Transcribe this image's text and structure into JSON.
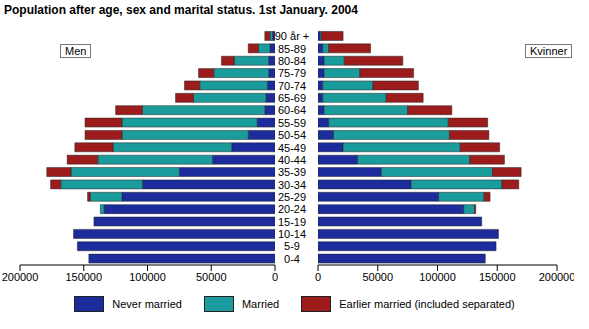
{
  "title": "Population after age, sex and marital status. 1st January. 2004",
  "chart_data": [
    {
      "type": "bar",
      "orientation": "horizontal",
      "stacked": true,
      "annotation": "Men",
      "legend": "bottom",
      "categories": [
        "0-4",
        "5-9",
        "10-14",
        "15-19",
        "20-24",
        "25-29",
        "30-34",
        "35-39",
        "40-44",
        "45-49",
        "50-54",
        "55-59",
        "60-64",
        "65-69",
        "70-74",
        "75-79",
        "80-84",
        "85-89",
        "90 år +"
      ],
      "xlim": [
        200000,
        0
      ],
      "xticks": [
        200000,
        150000,
        100000,
        50000,
        0
      ],
      "series": [
        {
          "name": "Never married",
          "color": "#1c2c9c",
          "values": [
            146000,
            155000,
            158000,
            142000,
            134000,
            120000,
            104000,
            75000,
            49000,
            34000,
            21000,
            14000,
            8000,
            7000,
            6000,
            5000,
            5000,
            4000,
            2000
          ]
        },
        {
          "name": "Married",
          "color": "#1b9c9c",
          "values": [
            0,
            0,
            0,
            0,
            3000,
            25000,
            64000,
            85000,
            90000,
            93000,
            99000,
            106000,
            96000,
            57000,
            53000,
            43000,
            27000,
            9000,
            2000
          ]
        },
        {
          "name": "Earlier married (included separated)",
          "color": "#9c1c1c",
          "values": [
            0,
            0,
            0,
            0,
            0,
            2000,
            8000,
            19000,
            24000,
            30000,
            29000,
            29000,
            21000,
            14000,
            12000,
            12000,
            10000,
            8000,
            4000
          ]
        }
      ]
    },
    {
      "type": "bar",
      "orientation": "horizontal",
      "stacked": true,
      "annotation": "Kvinner",
      "categories": [
        "0-4",
        "5-9",
        "10-14",
        "15-19",
        "20-24",
        "25-29",
        "30-34",
        "35-39",
        "40-44",
        "45-49",
        "50-54",
        "55-59",
        "60-64",
        "65-69",
        "70-74",
        "75-79",
        "80-84",
        "85-89",
        "90 år +"
      ],
      "xlim": [
        0,
        200000
      ],
      "xticks": [
        0,
        50000,
        100000,
        150000,
        200000
      ],
      "series": [
        {
          "name": "Never married",
          "color": "#1c2c9c",
          "values": [
            140000,
            149000,
            151000,
            137000,
            122000,
            101000,
            78000,
            53000,
            33000,
            21000,
            13000,
            9000,
            5000,
            4000,
            4000,
            5000,
            5000,
            4000,
            2000
          ]
        },
        {
          "name": "Married",
          "color": "#1b9c9c",
          "values": [
            0,
            0,
            0,
            0,
            9000,
            38000,
            76000,
            93000,
            94000,
            98000,
            97000,
            100000,
            70000,
            53000,
            42000,
            30000,
            17000,
            5000,
            1000
          ]
        },
        {
          "name": "Earlier married (included separated)",
          "color": "#9c1c1c",
          "values": [
            0,
            0,
            0,
            0,
            1000,
            5000,
            14000,
            24000,
            29000,
            33000,
            33000,
            33000,
            37000,
            31000,
            38000,
            45000,
            49000,
            35000,
            18000
          ]
        }
      ]
    }
  ]
}
